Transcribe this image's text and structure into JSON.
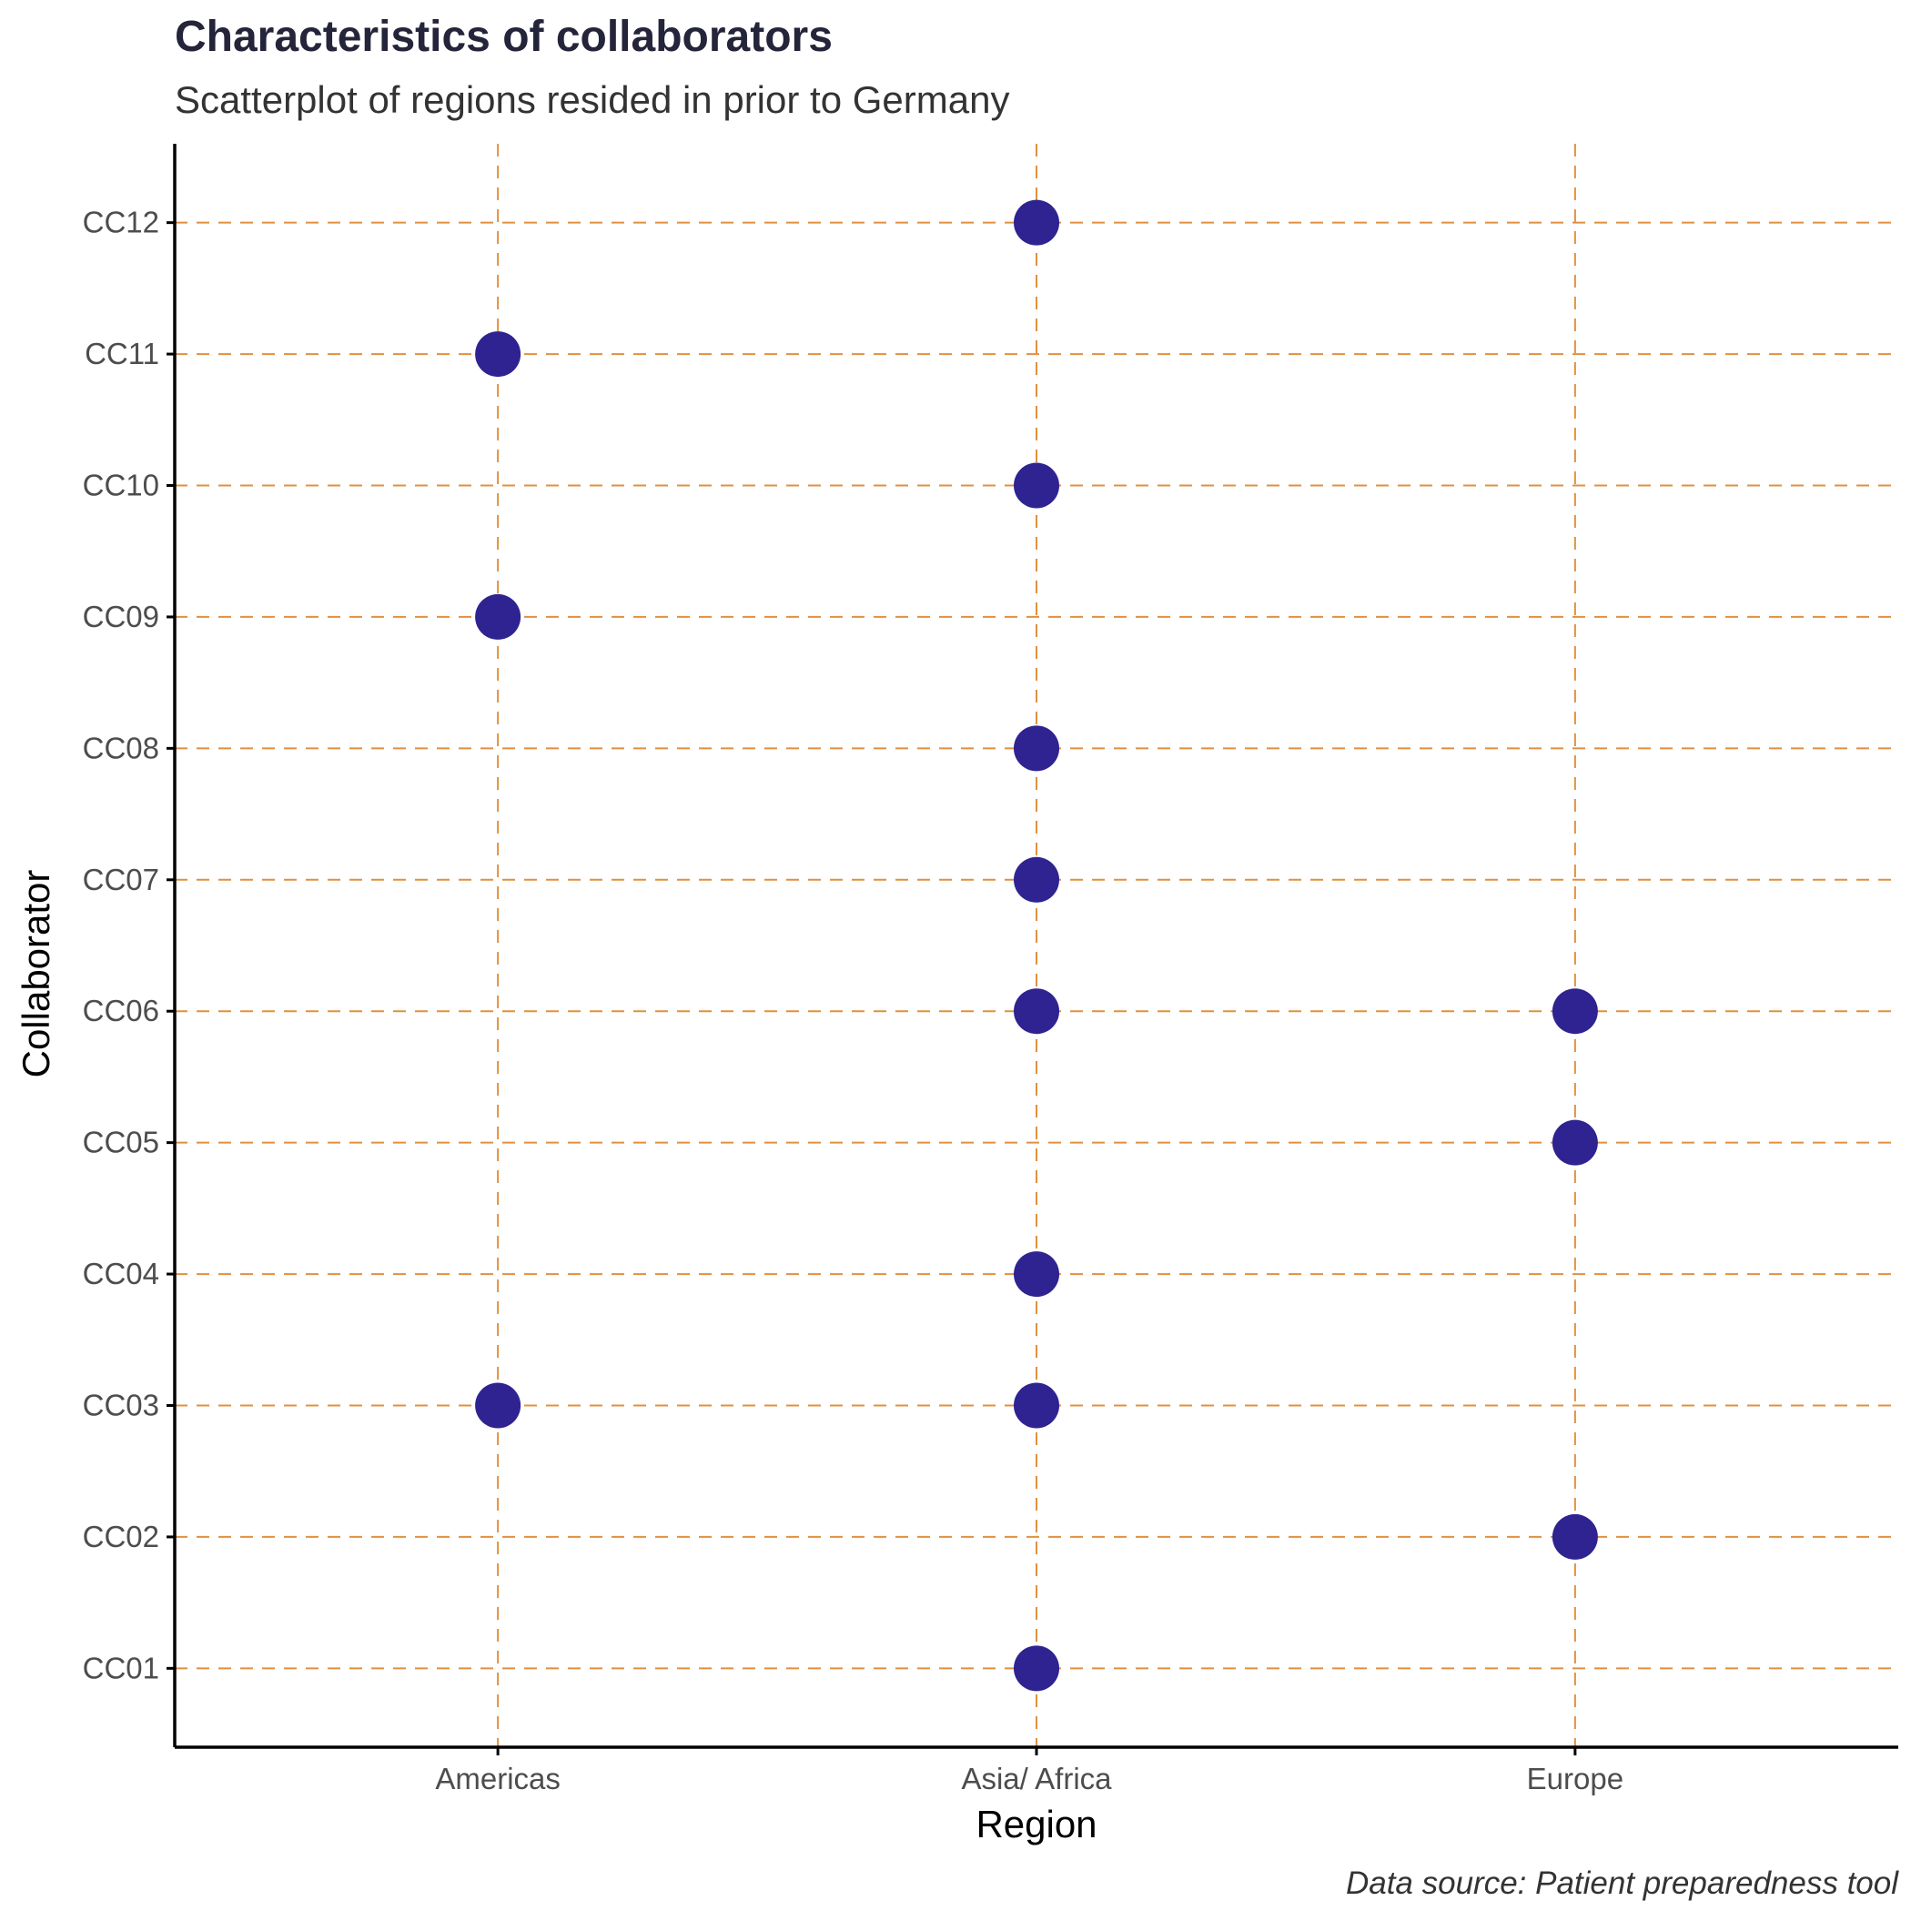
{
  "chart_data": {
    "type": "scatter",
    "title": "Characteristics of collaborators",
    "subtitle": "Scatterplot of regions resided in prior to Germany",
    "xlabel": "Region",
    "ylabel": "Collaborator",
    "caption": "Data source: Patient preparedness tool",
    "x_categories": [
      "Americas",
      "Asia/ Africa",
      "Europe"
    ],
    "y_categories": [
      "CC01",
      "CC02",
      "CC03",
      "CC04",
      "CC05",
      "CC06",
      "CC07",
      "CC08",
      "CC09",
      "CC10",
      "CC11",
      "CC12"
    ],
    "points": [
      {
        "x": "Asia/ Africa",
        "y": "CC12"
      },
      {
        "x": "Americas",
        "y": "CC11"
      },
      {
        "x": "Asia/ Africa",
        "y": "CC10"
      },
      {
        "x": "Americas",
        "y": "CC09"
      },
      {
        "x": "Asia/ Africa",
        "y": "CC08"
      },
      {
        "x": "Asia/ Africa",
        "y": "CC07"
      },
      {
        "x": "Asia/ Africa",
        "y": "CC06"
      },
      {
        "x": "Europe",
        "y": "CC06"
      },
      {
        "x": "Europe",
        "y": "CC05"
      },
      {
        "x": "Asia/ Africa",
        "y": "CC04"
      },
      {
        "x": "Americas",
        "y": "CC03"
      },
      {
        "x": "Asia/ Africa",
        "y": "CC03"
      },
      {
        "x": "Europe",
        "y": "CC02"
      },
      {
        "x": "Asia/ Africa",
        "y": "CC01"
      }
    ],
    "grid": true,
    "legend": "none",
    "colors": {
      "point": "#2e2390",
      "grid": "#e0903f",
      "axis": "#000000"
    }
  }
}
